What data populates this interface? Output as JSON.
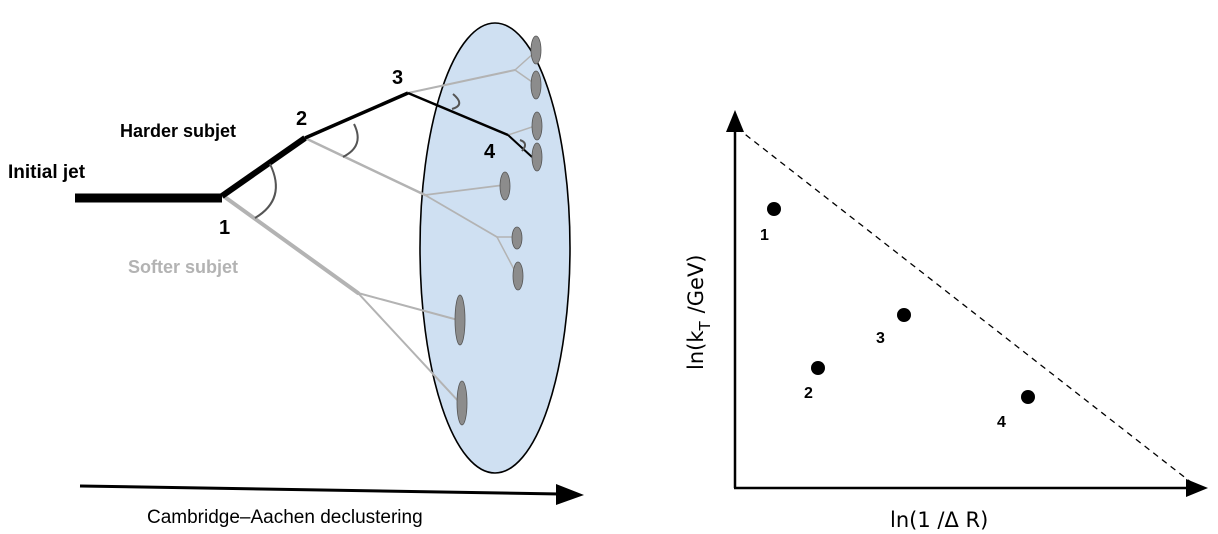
{
  "left_diagram": {
    "initial_jet_label": "Initial jet",
    "harder_subjet_label": "Harder subjet",
    "softer_subjet_label": "Softer subjet",
    "step_labels": [
      "1",
      "2",
      "3",
      "4"
    ],
    "arrow_label": "Cambridge–Aachen declustering",
    "colors": {
      "harder_line": "#000000",
      "softer_line": "#b3b3b3",
      "ellipse_fill": "#cfe0f2",
      "particle_fill": "#8c8c8c"
    }
  },
  "plane_diagram": {
    "y_axis_label_prefix": "ln(k",
    "y_axis_label_sub": "T",
    "y_axis_label_suffix": "/GeV)",
    "x_axis_label": "ln(1 /Δ R)",
    "point_labels": [
      "1",
      "2",
      "3",
      "4"
    ],
    "boundary_style": "dashed diagonal"
  }
}
